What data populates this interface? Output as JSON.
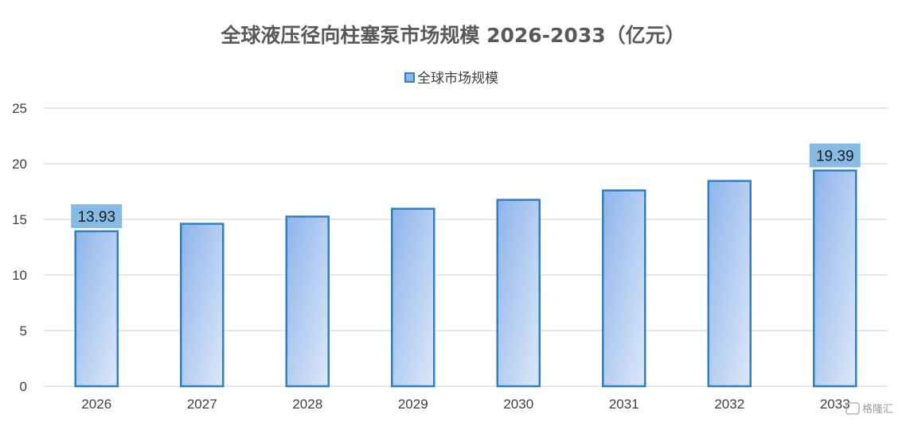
{
  "watermark": "格隆汇",
  "chart_data": {
    "type": "bar",
    "title": "全球液压径向柱塞泵市场规模 2026-2033（亿元）",
    "categories": [
      "2026",
      "2027",
      "2028",
      "2029",
      "2030",
      "2031",
      "2032",
      "2033"
    ],
    "series": [
      {
        "name": "全球市场规模",
        "values": [
          13.93,
          14.6,
          15.25,
          15.95,
          16.75,
          17.6,
          18.45,
          19.39
        ]
      }
    ],
    "data_labels": [
      {
        "index": 0,
        "text": "13.93"
      },
      {
        "index": 7,
        "text": "19.39"
      }
    ],
    "ylim": [
      0,
      25
    ],
    "yticks": [
      "0",
      "5",
      "10",
      "15",
      "20",
      "25"
    ],
    "xlabel": "",
    "ylabel": "",
    "grid": true,
    "legend_position": "top",
    "colors": {
      "bar_fill_start": "#8db4ec",
      "bar_fill_end": "#dde8f8",
      "bar_stroke": "#2f7fc1",
      "label_bg": "#86bbe6",
      "grid": "#d9d9d9",
      "title": "#595959",
      "text": "#404040"
    }
  }
}
